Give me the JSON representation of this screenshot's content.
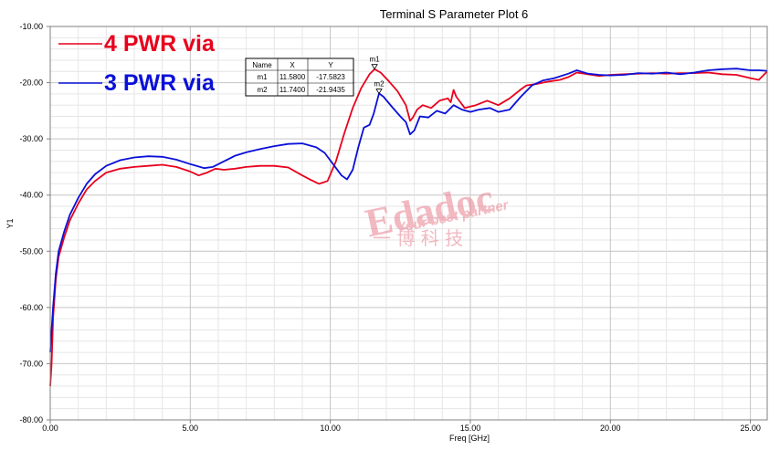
{
  "chart_data": {
    "type": "line",
    "title": "Terminal S Parameter Plot 6",
    "xlabel": "Freq [GHz]",
    "ylabel": "Y1",
    "xlim": [
      0,
      25.6
    ],
    "ylim": [
      -80,
      -10
    ],
    "grid": true,
    "legend_position": "top-left",
    "x_ticks": [
      "0.00",
      "5.00",
      "10.00",
      "15.00",
      "20.00",
      "25.00"
    ],
    "y_ticks": [
      "-10.00",
      "-20.00",
      "-30.00",
      "-40.00",
      "-50.00",
      "-60.00",
      "-70.00",
      "-80.00"
    ],
    "series": [
      {
        "name": "4 PWR via",
        "color": "#e8001c",
        "x": [
          0.0,
          0.05,
          0.1,
          0.2,
          0.3,
          0.5,
          0.7,
          1.0,
          1.3,
          1.6,
          2.0,
          2.5,
          3.0,
          3.5,
          4.0,
          4.5,
          5.0,
          5.3,
          5.6,
          5.9,
          6.2,
          6.6,
          7.0,
          7.5,
          8.0,
          8.5,
          9.0,
          9.3,
          9.6,
          9.9,
          10.2,
          10.5,
          10.8,
          11.1,
          11.4,
          11.58,
          11.8,
          12.1,
          12.4,
          12.7,
          12.85,
          12.95,
          13.1,
          13.3,
          13.6,
          13.9,
          14.2,
          14.3,
          14.4,
          14.5,
          14.8,
          15.2,
          15.6,
          16.0,
          16.4,
          16.8,
          17.0,
          17.4,
          17.8,
          18.2,
          18.5,
          18.8,
          19.2,
          19.6,
          20.0,
          20.5,
          21.0,
          21.5,
          22.0,
          22.5,
          23.0,
          23.5,
          24.0,
          24.5,
          25.0,
          25.3,
          25.6
        ],
        "y": [
          -74,
          -70,
          -62,
          -55,
          -51,
          -47.5,
          -44.5,
          -41.5,
          -39,
          -37.5,
          -36,
          -35.3,
          -35,
          -34.8,
          -34.6,
          -35,
          -35.8,
          -36.5,
          -36,
          -35.3,
          -35.5,
          -35.3,
          -35,
          -34.8,
          -34.8,
          -35.1,
          -36.5,
          -37.3,
          -38,
          -37.5,
          -34,
          -29,
          -24.5,
          -21,
          -18.5,
          -17.6,
          -18.2,
          -19.8,
          -21.5,
          -24,
          -26.8,
          -26.2,
          -24.8,
          -24,
          -24.5,
          -23.2,
          -22.8,
          -23.5,
          -21.3,
          -22.5,
          -24.5,
          -24,
          -23.2,
          -24,
          -22.8,
          -21.2,
          -20.5,
          -20.2,
          -19.8,
          -19.5,
          -19,
          -18.2,
          -18.5,
          -18.8,
          -18.6,
          -18.5,
          -18.4,
          -18.3,
          -18.4,
          -18.3,
          -18.3,
          -18.2,
          -18.5,
          -18.6,
          -19.2,
          -19.5,
          -18.0
        ]
      },
      {
        "name": "3 PWR via",
        "color": "#0a10d8",
        "x": [
          0.0,
          0.05,
          0.1,
          0.2,
          0.3,
          0.5,
          0.7,
          1.0,
          1.3,
          1.6,
          2.0,
          2.5,
          3.0,
          3.5,
          4.0,
          4.5,
          5.0,
          5.5,
          5.8,
          6.2,
          6.6,
          7.0,
          7.5,
          8.0,
          8.5,
          9.0,
          9.5,
          9.8,
          10.1,
          10.4,
          10.6,
          10.8,
          11.0,
          11.2,
          11.4,
          11.55,
          11.74,
          11.9,
          12.2,
          12.5,
          12.7,
          12.85,
          13.0,
          13.2,
          13.5,
          13.8,
          14.1,
          14.4,
          14.7,
          15.0,
          15.3,
          15.7,
          16.0,
          16.4,
          16.8,
          17.2,
          17.6,
          18.0,
          18.5,
          18.8,
          19.2,
          19.6,
          20.0,
          20.5,
          21.0,
          21.5,
          22.0,
          22.5,
          23.0,
          23.5,
          24.0,
          24.5,
          25.0,
          25.3,
          25.6
        ],
        "y": [
          -68,
          -64,
          -60,
          -54,
          -50,
          -46.5,
          -43.5,
          -40.5,
          -38,
          -36.3,
          -34.8,
          -33.8,
          -33.3,
          -33.1,
          -33.2,
          -33.7,
          -34.5,
          -35.2,
          -35,
          -34,
          -33,
          -32.4,
          -31.8,
          -31.3,
          -30.9,
          -30.8,
          -31.5,
          -32.5,
          -34.5,
          -36.5,
          -37.2,
          -35.5,
          -31.5,
          -28,
          -27.5,
          -25.5,
          -21.9,
          -22.5,
          -24.3,
          -26,
          -27,
          -29.2,
          -28.5,
          -26,
          -26.2,
          -25,
          -25.5,
          -24,
          -24.8,
          -25.2,
          -24.8,
          -24.5,
          -25.2,
          -24.8,
          -22.5,
          -20.5,
          -19.6,
          -19.2,
          -18.4,
          -17.8,
          -18.4,
          -18.6,
          -18.7,
          -18.6,
          -18.3,
          -18.4,
          -18.2,
          -18.5,
          -18.2,
          -17.8,
          -17.6,
          -17.5,
          -17.8,
          -17.8,
          -17.9
        ]
      }
    ],
    "markers": {
      "headers": [
        "Name",
        "X",
        "Y"
      ],
      "rows": [
        [
          "m1",
          "11.5800",
          "-17.5823"
        ],
        [
          "m2",
          "11.7400",
          "-21.9435"
        ]
      ],
      "points": [
        {
          "name": "m1",
          "x": 11.58,
          "y": -17.5823
        },
        {
          "name": "m2",
          "x": 11.74,
          "y": -21.9435
        }
      ]
    }
  },
  "watermark": {
    "brand": "Edadoc",
    "tagline": "Your best partner",
    "chinese": "一 博 科 技",
    "color": "#e88090"
  }
}
